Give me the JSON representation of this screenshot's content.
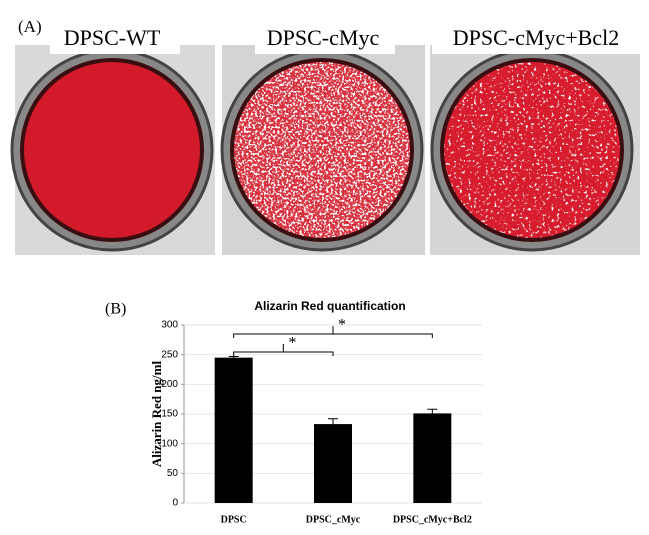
{
  "panel_a": {
    "label": "(A)",
    "titles": [
      "DPSC-WT",
      "DPSC-cMyc",
      "DPSC-cMyc+Bcl2"
    ]
  },
  "panel_b_label": "(B)",
  "chart_data": {
    "type": "bar",
    "title": "Alizarin Red quantification",
    "y_label": "Alizarin Red ng/ml",
    "categories": [
      "DPSC",
      "DPSC_cMyc",
      "DPSC_cMyc+Bcl2"
    ],
    "values": [
      245,
      133,
      151
    ],
    "errors": [
      2,
      9,
      7
    ],
    "color": "#000000",
    "ylim": [
      0,
      300
    ],
    "yticks": [
      0,
      50,
      100,
      150,
      200,
      250,
      300
    ],
    "grid": true,
    "annotations": [
      {
        "text": "*",
        "from": 0,
        "to": 1
      },
      {
        "text": "*",
        "from": 0,
        "to": 2
      }
    ]
  }
}
